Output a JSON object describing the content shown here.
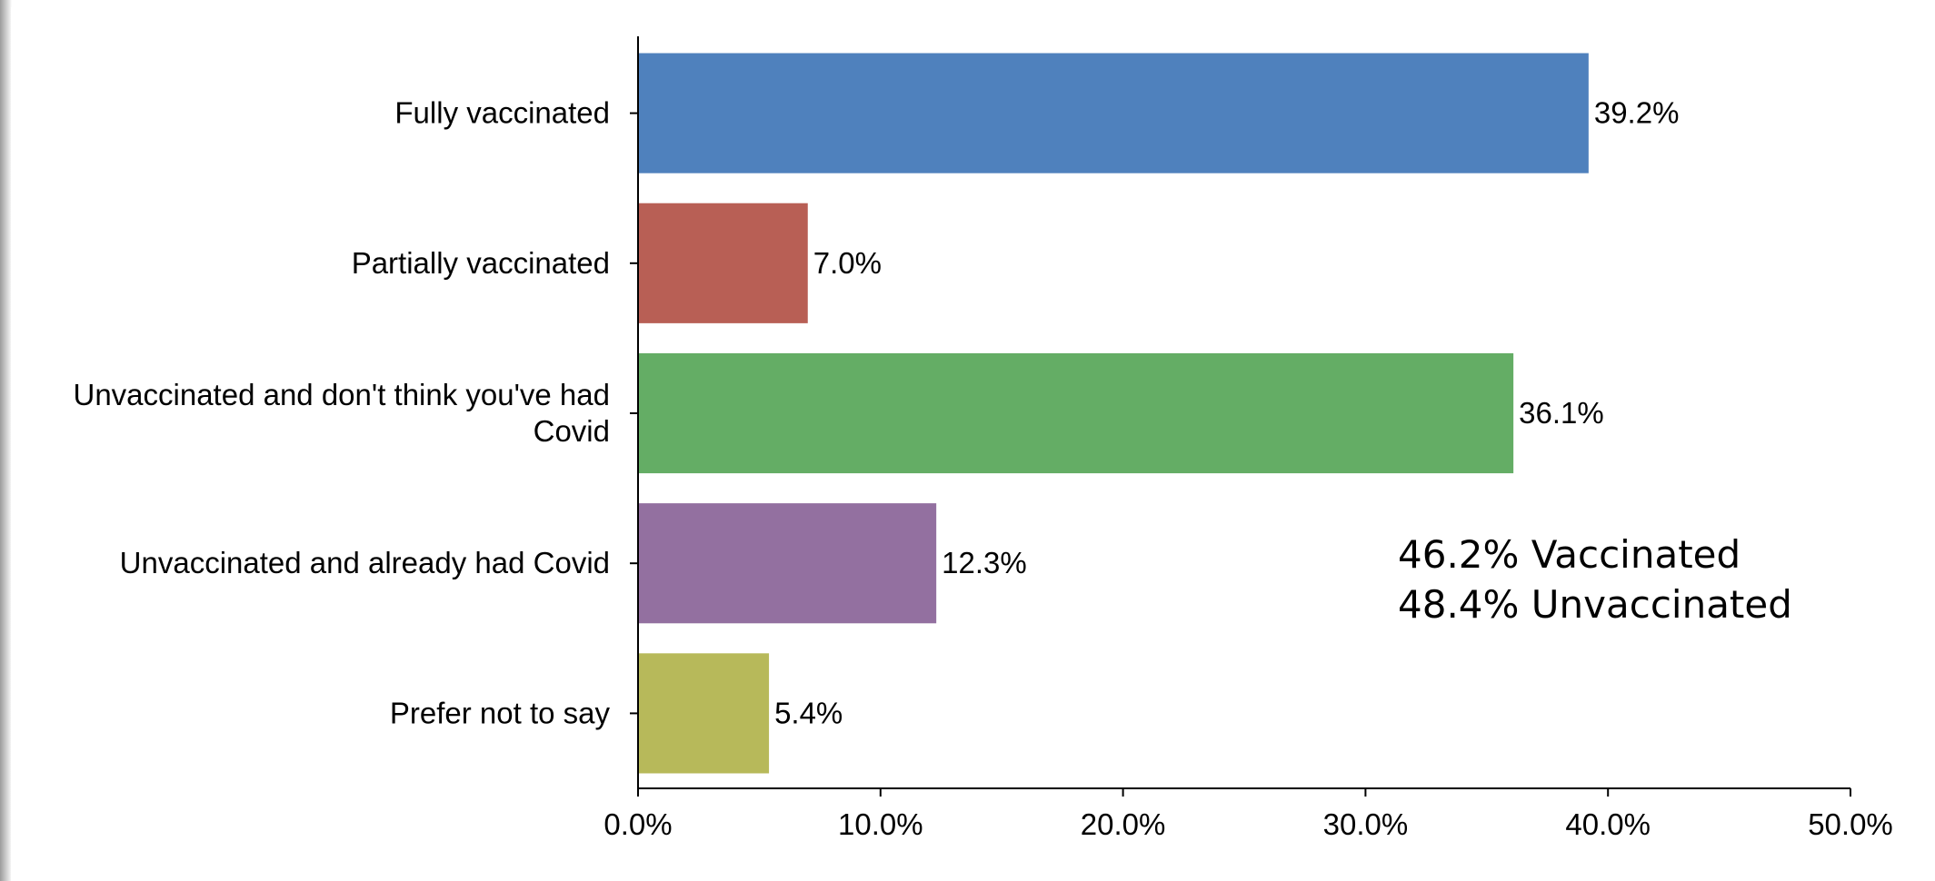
{
  "chart_data": {
    "type": "bar",
    "orientation": "horizontal",
    "title": "",
    "xlabel": "",
    "ylabel": "",
    "categories": [
      [
        "Fully vaccinated"
      ],
      [
        "Partially vaccinated"
      ],
      [
        "Unvaccinated and don't think you've had",
        "Covid"
      ],
      [
        "Unvaccinated and already had Covid"
      ],
      [
        "Prefer not to say"
      ]
    ],
    "values": [
      39.2,
      7.0,
      36.1,
      12.3,
      5.4
    ],
    "value_labels": [
      "39.2%",
      "7.0%",
      "36.1%",
      "12.3%",
      "5.4%"
    ],
    "colors": [
      "#4f81bd",
      "#b85f55",
      "#64ad65",
      "#9370a0",
      "#b7b95a"
    ],
    "xlim": [
      0,
      50
    ],
    "xticks": [
      0,
      10,
      20,
      30,
      40,
      50
    ],
    "xtick_labels": [
      "0.0%",
      "10.0%",
      "20.0%",
      "30.0%",
      "40.0%",
      "50.0%"
    ],
    "grid": false,
    "legend": "none",
    "annotations": [
      "46.2% Vaccinated",
      "48.4% Unvaccinated"
    ]
  }
}
